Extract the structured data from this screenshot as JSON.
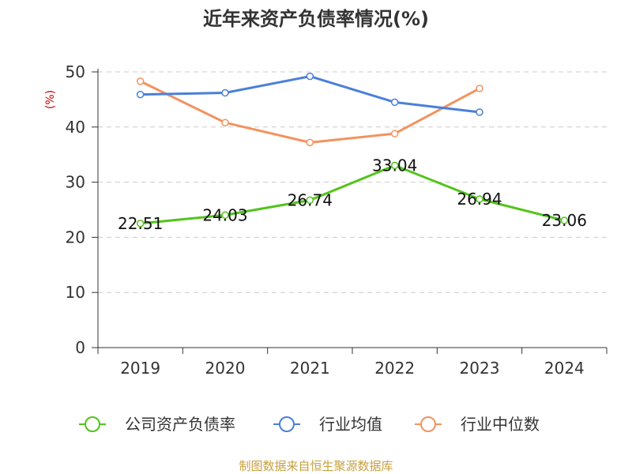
{
  "chart_data": {
    "type": "line",
    "title": "近年来资产负债率情况(%)",
    "ylabel": "(%)",
    "xlabel": "",
    "categories": [
      "2019",
      "2020",
      "2021",
      "2022",
      "2023",
      "2024"
    ],
    "ylim": [
      0,
      50
    ],
    "yticks": [
      0,
      10,
      20,
      30,
      40,
      50
    ],
    "grid": true,
    "legend_position": "bottom",
    "series": [
      {
        "name": "公司资产负债率",
        "color": "#52c41a",
        "values": [
          22.51,
          24.03,
          26.74,
          33.04,
          26.94,
          23.06
        ],
        "labels": [
          "22.51",
          "24.03",
          "26.74",
          "33.04",
          "26.94",
          "23.06"
        ]
      },
      {
        "name": "行业均值",
        "color": "#4a7fdb",
        "values": [
          45.9,
          46.2,
          49.2,
          44.5,
          42.7,
          null
        ]
      },
      {
        "name": "行业中位数",
        "color": "#f4925e",
        "values": [
          48.3,
          40.8,
          37.2,
          38.8,
          47.0,
          null
        ]
      }
    ]
  },
  "source": "制图数据来自恒生聚源数据库"
}
